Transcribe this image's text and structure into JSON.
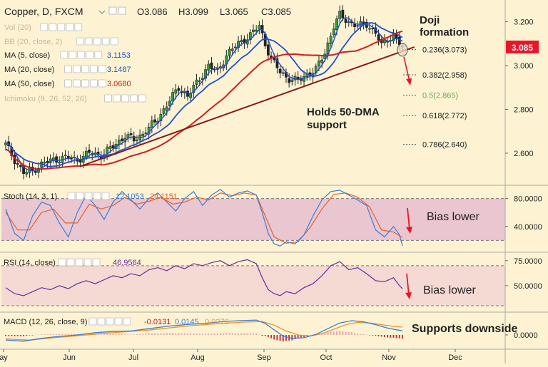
{
  "header": {
    "symbol": "Copper, D, FXCM",
    "ohlc": {
      "open": "O3.086",
      "high": "H3.099",
      "low": "L3.065",
      "close": "C3.085"
    }
  },
  "indicators": [
    {
      "label": "Vol (20)",
      "value": "",
      "color": "#b0b0b0",
      "faded": true
    },
    {
      "label": "BB (20, close, 2)",
      "value": "",
      "color": "#b0b0b0",
      "faded": true
    },
    {
      "label": "MA (5, close)",
      "value": "3.1153",
      "color": "#1e4fd6",
      "faded": false
    },
    {
      "label": "MA (20, close)",
      "value": "3.1487",
      "color": "#1e4fd6",
      "faded": false
    },
    {
      "label": "MA (50, close)",
      "value": "3.0680",
      "color": "#d21d1d",
      "faded": false
    },
    {
      "label": "Ichimoku (9, 26, 52, 26)",
      "value": "",
      "color": "#b0b0b0",
      "faded": true
    }
  ],
  "price_badge": {
    "value": "3.085",
    "color": "#e8162a"
  },
  "annotations": {
    "doji": "Doji\nformation",
    "support": "Holds 50-DMA\nsupport",
    "stoch_bias": "Bias lower",
    "rsi_bias": "Bias lower",
    "macd_note": "Supports downside"
  },
  "fib_levels": [
    {
      "label": "0.236(3.073)",
      "value": 3.073,
      "color": "#222222"
    },
    {
      "label": "0.382(2.958)",
      "value": 2.958,
      "color": "#222222"
    },
    {
      "label": "0.5(2.865)",
      "value": 2.865,
      "color": "#6aa84f"
    },
    {
      "label": "0.618(2.772)",
      "value": 2.772,
      "color": "#222222"
    },
    {
      "label": "0.786(2.640)",
      "value": 2.64,
      "color": "#222222"
    }
  ],
  "stoch_panel": {
    "label": "Stoch (14, 3, 1)",
    "k": "12.1053",
    "d": "24.1151"
  },
  "rsi_panel": {
    "label": "RSI (14, close)",
    "value": "46.9564"
  },
  "macd_panel": {
    "label": "MACD (12, 26, close, 9)",
    "hist": "-0.0131",
    "macd": "0.0145",
    "signal": "0.0276"
  },
  "chart_data": [
    {
      "type": "candlestick",
      "title": "Copper, D, FXCM",
      "ylim": [
        2.46,
        3.28
      ],
      "yticks": [
        "3.200",
        "3.000",
        "2.800",
        "2.600"
      ],
      "yticks_values": [
        3.2,
        3.0,
        2.8,
        2.6
      ],
      "x_months": [
        "ay",
        "Jun",
        "Jul",
        "Aug",
        "Sep",
        "Oct",
        "Nov",
        "Dec"
      ],
      "close_path": [
        [
          0,
          2.64
        ],
        [
          3,
          2.57
        ],
        [
          6,
          2.51
        ],
        [
          9,
          2.52
        ],
        [
          12,
          2.55
        ],
        [
          16,
          2.57
        ],
        [
          20,
          2.58
        ],
        [
          24,
          2.57
        ],
        [
          28,
          2.6
        ],
        [
          32,
          2.59
        ],
        [
          36,
          2.63
        ],
        [
          40,
          2.68
        ],
        [
          43,
          2.66
        ],
        [
          46,
          2.69
        ],
        [
          50,
          2.74
        ],
        [
          54,
          2.82
        ],
        [
          58,
          2.9
        ],
        [
          61,
          2.86
        ],
        [
          64,
          2.92
        ],
        [
          68,
          3.0
        ],
        [
          71,
          2.97
        ],
        [
          74,
          3.05
        ],
        [
          78,
          3.1
        ],
        [
          82,
          3.14
        ],
        [
          85,
          3.18
        ],
        [
          87,
          3.1
        ],
        [
          89,
          3.03
        ],
        [
          92,
          2.97
        ],
        [
          95,
          2.94
        ],
        [
          98,
          2.93
        ],
        [
          101,
          2.96
        ],
        [
          104,
          2.98
        ],
        [
          107,
          3.06
        ],
        [
          110,
          3.18
        ],
        [
          112,
          3.23
        ],
        [
          115,
          3.2
        ],
        [
          118,
          3.18
        ],
        [
          121,
          3.19
        ],
        [
          124,
          3.15
        ],
        [
          126,
          3.09
        ],
        [
          128,
          3.12
        ],
        [
          130,
          3.14
        ],
        [
          132,
          3.1
        ],
        [
          133,
          3.085
        ]
      ],
      "ma_series": [
        {
          "name": "MA (5, close)",
          "color": "#1e4fd6",
          "width": 1.4,
          "smooth": 3
        },
        {
          "name": "MA (20, close)",
          "color": "#1e4fd6",
          "width": 1.8,
          "smooth": 12
        },
        {
          "name": "MA (50, close)",
          "color": "#d21d1d",
          "width": 2.0,
          "smooth": 30
        }
      ],
      "trendline": {
        "from": [
          25,
          2.54
        ],
        "to": [
          137,
          3.085
        ],
        "color": "#8b1a1a"
      }
    },
    {
      "type": "line",
      "name": "Stoch (14, 3, 1)",
      "ylim": [
        5,
        97
      ],
      "yticks": [
        "80.0000",
        "40.0000"
      ],
      "yticks_values": [
        80,
        40
      ],
      "band": [
        80,
        20
      ],
      "k_points": [
        [
          0,
          65
        ],
        [
          3,
          30
        ],
        [
          6,
          20
        ],
        [
          9,
          55
        ],
        [
          12,
          75
        ],
        [
          15,
          70
        ],
        [
          18,
          45
        ],
        [
          21,
          25
        ],
        [
          24,
          60
        ],
        [
          27,
          85
        ],
        [
          30,
          70
        ],
        [
          33,
          50
        ],
        [
          36,
          75
        ],
        [
          39,
          90
        ],
        [
          42,
          78
        ],
        [
          45,
          65
        ],
        [
          48,
          80
        ],
        [
          51,
          88
        ],
        [
          54,
          75
        ],
        [
          57,
          62
        ],
        [
          60,
          80
        ],
        [
          63,
          90
        ],
        [
          66,
          70
        ],
        [
          69,
          85
        ],
        [
          72,
          93
        ],
        [
          75,
          82
        ],
        [
          78,
          88
        ],
        [
          81,
          91
        ],
        [
          84,
          85
        ],
        [
          86,
          60
        ],
        [
          88,
          30
        ],
        [
          90,
          15
        ],
        [
          92,
          12
        ],
        [
          94,
          18
        ],
        [
          97,
          15
        ],
        [
          100,
          28
        ],
        [
          103,
          55
        ],
        [
          106,
          78
        ],
        [
          109,
          90
        ],
        [
          112,
          92
        ],
        [
          115,
          85
        ],
        [
          118,
          78
        ],
        [
          121,
          70
        ],
        [
          124,
          35
        ],
        [
          127,
          25
        ],
        [
          130,
          40
        ],
        [
          132,
          28
        ],
        [
          133,
          12
        ]
      ],
      "d_points": [
        [
          0,
          60
        ],
        [
          4,
          35
        ],
        [
          8,
          35
        ],
        [
          12,
          60
        ],
        [
          16,
          65
        ],
        [
          20,
          45
        ],
        [
          24,
          45
        ],
        [
          28,
          72
        ],
        [
          32,
          65
        ],
        [
          36,
          70
        ],
        [
          40,
          82
        ],
        [
          44,
          72
        ],
        [
          48,
          76
        ],
        [
          52,
          82
        ],
        [
          56,
          72
        ],
        [
          60,
          75
        ],
        [
          64,
          82
        ],
        [
          68,
          78
        ],
        [
          72,
          88
        ],
        [
          76,
          84
        ],
        [
          80,
          88
        ],
        [
          84,
          85
        ],
        [
          87,
          55
        ],
        [
          90,
          25
        ],
        [
          94,
          16
        ],
        [
          98,
          18
        ],
        [
          102,
          38
        ],
        [
          106,
          65
        ],
        [
          110,
          86
        ],
        [
          114,
          88
        ],
        [
          118,
          82
        ],
        [
          122,
          68
        ],
        [
          126,
          35
        ],
        [
          130,
          32
        ],
        [
          133,
          24
        ]
      ],
      "k_color": "#3b7dd8",
      "d_color": "#e8602c"
    },
    {
      "type": "line",
      "name": "RSI (14, close)",
      "ylim": [
        25,
        82
      ],
      "yticks": [
        "75.0000",
        "50.0000"
      ],
      "yticks_values": [
        75,
        50
      ],
      "band": [
        70,
        30
      ],
      "points": [
        [
          0,
          48
        ],
        [
          3,
          42
        ],
        [
          6,
          40
        ],
        [
          9,
          44
        ],
        [
          12,
          48
        ],
        [
          15,
          46
        ],
        [
          18,
          50
        ],
        [
          21,
          47
        ],
        [
          24,
          52
        ],
        [
          27,
          55
        ],
        [
          30,
          52
        ],
        [
          33,
          56
        ],
        [
          36,
          60
        ],
        [
          39,
          58
        ],
        [
          42,
          62
        ],
        [
          45,
          60
        ],
        [
          48,
          66
        ],
        [
          51,
          68
        ],
        [
          54,
          65
        ],
        [
          57,
          70
        ],
        [
          60,
          67
        ],
        [
          63,
          72
        ],
        [
          66,
          70
        ],
        [
          69,
          73
        ],
        [
          72,
          75
        ],
        [
          75,
          70
        ],
        [
          78,
          74
        ],
        [
          81,
          76
        ],
        [
          84,
          72
        ],
        [
          86,
          58
        ],
        [
          88,
          46
        ],
        [
          90,
          42
        ],
        [
          92,
          40
        ],
        [
          94,
          44
        ],
        [
          97,
          42
        ],
        [
          100,
          48
        ],
        [
          103,
          52
        ],
        [
          106,
          60
        ],
        [
          109,
          70
        ],
        [
          112,
          74
        ],
        [
          115,
          66
        ],
        [
          118,
          68
        ],
        [
          121,
          62
        ],
        [
          124,
          55
        ],
        [
          127,
          54
        ],
        [
          130,
          58
        ],
        [
          132,
          50
        ],
        [
          133,
          47
        ]
      ],
      "color": "#6a2a9a"
    },
    {
      "type": "line",
      "name": "MACD (12, 26, close, 9)",
      "ylim": [
        -0.045,
        0.075
      ],
      "yticks": [
        "0.0000"
      ],
      "yticks_values": [
        0
      ],
      "macd_points": [
        [
          0,
          -0.018
        ],
        [
          6,
          -0.022
        ],
        [
          12,
          -0.012
        ],
        [
          18,
          -0.005
        ],
        [
          24,
          0.0
        ],
        [
          30,
          0.008
        ],
        [
          36,
          0.012
        ],
        [
          42,
          0.014
        ],
        [
          48,
          0.022
        ],
        [
          54,
          0.03
        ],
        [
          60,
          0.036
        ],
        [
          66,
          0.04
        ],
        [
          72,
          0.046
        ],
        [
          78,
          0.05
        ],
        [
          84,
          0.052
        ],
        [
          87,
          0.04
        ],
        [
          90,
          0.018
        ],
        [
          93,
          -0.004
        ],
        [
          96,
          -0.012
        ],
        [
          100,
          -0.01
        ],
        [
          104,
          0.002
        ],
        [
          108,
          0.022
        ],
        [
          112,
          0.042
        ],
        [
          116,
          0.05
        ],
        [
          120,
          0.046
        ],
        [
          124,
          0.036
        ],
        [
          128,
          0.024
        ],
        [
          131,
          0.018
        ],
        [
          133,
          0.0145
        ]
      ],
      "signal_points": [
        [
          0,
          -0.014
        ],
        [
          8,
          -0.018
        ],
        [
          16,
          -0.01
        ],
        [
          24,
          -0.003
        ],
        [
          32,
          0.005
        ],
        [
          40,
          0.011
        ],
        [
          48,
          0.017
        ],
        [
          56,
          0.026
        ],
        [
          64,
          0.034
        ],
        [
          72,
          0.04
        ],
        [
          80,
          0.045
        ],
        [
          86,
          0.047
        ],
        [
          90,
          0.034
        ],
        [
          94,
          0.014
        ],
        [
          98,
          0.0
        ],
        [
          102,
          -0.004
        ],
        [
          106,
          0.004
        ],
        [
          110,
          0.02
        ],
        [
          114,
          0.036
        ],
        [
          118,
          0.044
        ],
        [
          122,
          0.042
        ],
        [
          126,
          0.036
        ],
        [
          130,
          0.03
        ],
        [
          133,
          0.0276
        ]
      ],
      "macd_color": "#3b7dd8",
      "signal_color": "#e8952c",
      "hist_color": "#c0162a"
    }
  ]
}
